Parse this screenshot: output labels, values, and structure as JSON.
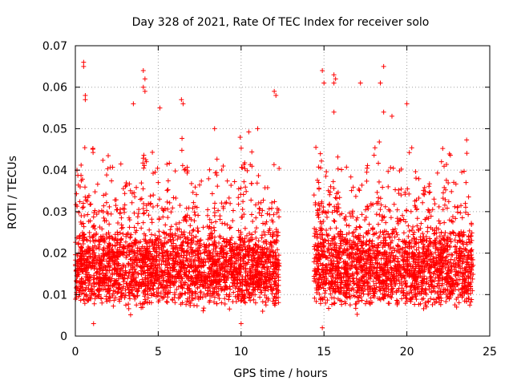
{
  "chart_data": {
    "type": "scatter",
    "title": "Day 328 of 2021, Rate Of TEC Index for receiver solo",
    "xlabel": "GPS time / hours",
    "ylabel": "ROTI / TECUs",
    "xlim": [
      0,
      25
    ],
    "ylim": [
      0,
      0.07
    ],
    "x_ticks": [
      "0",
      "5",
      "10",
      "15",
      "20",
      "25"
    ],
    "y_ticks": [
      "0",
      "0.01",
      "0.02",
      "0.03",
      "0.04",
      "0.05",
      "0.06",
      "0.07"
    ],
    "grid": true,
    "marker": "+",
    "color": "#ff0000",
    "series": [
      {
        "name": "ROTI",
        "segments": [
          {
            "x_start": 0.0,
            "x_end": 12.3
          },
          {
            "x_start": 14.4,
            "x_end": 24.0
          }
        ],
        "typical_range": [
          0.005,
          0.03
        ],
        "notable_points": [
          {
            "x": 0.5,
            "y": 0.066
          },
          {
            "x": 0.5,
            "y": 0.065
          },
          {
            "x": 0.6,
            "y": 0.058
          },
          {
            "x": 0.6,
            "y": 0.057
          },
          {
            "x": 4.1,
            "y": 0.064
          },
          {
            "x": 4.2,
            "y": 0.062
          },
          {
            "x": 4.1,
            "y": 0.06
          },
          {
            "x": 4.2,
            "y": 0.059
          },
          {
            "x": 3.5,
            "y": 0.056
          },
          {
            "x": 5.1,
            "y": 0.055
          },
          {
            "x": 6.4,
            "y": 0.057
          },
          {
            "x": 6.5,
            "y": 0.056
          },
          {
            "x": 8.4,
            "y": 0.05
          },
          {
            "x": 12.0,
            "y": 0.059
          },
          {
            "x": 12.1,
            "y": 0.058
          },
          {
            "x": 14.9,
            "y": 0.064
          },
          {
            "x": 15.6,
            "y": 0.063
          },
          {
            "x": 15.7,
            "y": 0.062
          },
          {
            "x": 15.6,
            "y": 0.061
          },
          {
            "x": 15.0,
            "y": 0.061
          },
          {
            "x": 17.2,
            "y": 0.061
          },
          {
            "x": 18.6,
            "y": 0.065
          },
          {
            "x": 18.4,
            "y": 0.061
          },
          {
            "x": 18.6,
            "y": 0.054
          },
          {
            "x": 19.1,
            "y": 0.053
          },
          {
            "x": 20.0,
            "y": 0.056
          },
          {
            "x": 15.6,
            "y": 0.054
          },
          {
            "x": 11.0,
            "y": 0.05
          },
          {
            "x": 0.1,
            "y": 0.04
          },
          {
            "x": 14.4,
            "y": 0.034
          },
          {
            "x": 10.0,
            "y": 0.003
          },
          {
            "x": 14.9,
            "y": 0.002
          },
          {
            "x": 1.1,
            "y": 0.003
          }
        ]
      }
    ]
  }
}
